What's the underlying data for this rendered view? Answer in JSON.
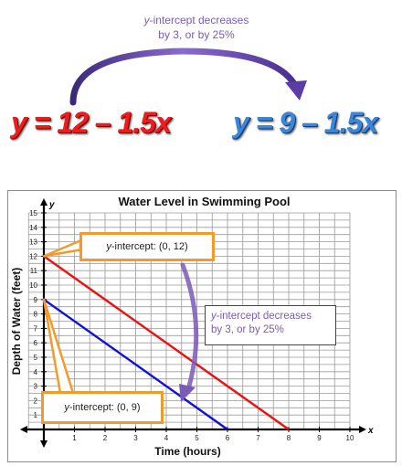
{
  "top_note": {
    "line1_italic": "y",
    "line1_rest": "-intercept decreases",
    "line2": "by 3, or by 25%"
  },
  "equations": {
    "first": "y = 12 – 1.5x",
    "second": "y = 9 – 1.5x"
  },
  "colors": {
    "line_12": "#ee1111",
    "line_9": "#1111dd",
    "callout_border": "#f39a2a",
    "arrow": "#7b5bb8",
    "grid": "#9a9a9a"
  },
  "callouts": {
    "intercept_12_italic": "y",
    "intercept_12_rest": "-intercept: (0, 12)",
    "intercept_9_italic": "y",
    "intercept_9_rest": "-intercept: (0, 9)",
    "decrease_line1_italic": "y",
    "decrease_line1_rest": "-intercept decreases",
    "decrease_line2": "by 3, or by 25%"
  },
  "chart_data": {
    "type": "line",
    "title": "Water Level in Swimming Pool",
    "xlabel": "Time (hours)",
    "ylabel": "Depth of Water (feet)",
    "x_axis_letter": "x",
    "y_axis_letter": "y",
    "xlim": [
      0,
      10
    ],
    "ylim": [
      0,
      15
    ],
    "x_ticks": [
      "1",
      "2",
      "3",
      "4",
      "5",
      "6",
      "7",
      "8",
      "9",
      "10"
    ],
    "y_ticks": [
      "1",
      "2",
      "3",
      "4",
      "5",
      "6",
      "7",
      "8",
      "9",
      "10",
      "11",
      "12",
      "13",
      "14",
      "15"
    ],
    "grid": true,
    "series": [
      {
        "color": "#ee1111",
        "points": [
          [
            0,
            12
          ],
          [
            8,
            0
          ]
        ]
      },
      {
        "color": "#1111dd",
        "points": [
          [
            0,
            9
          ],
          [
            6,
            0
          ]
        ]
      }
    ]
  }
}
